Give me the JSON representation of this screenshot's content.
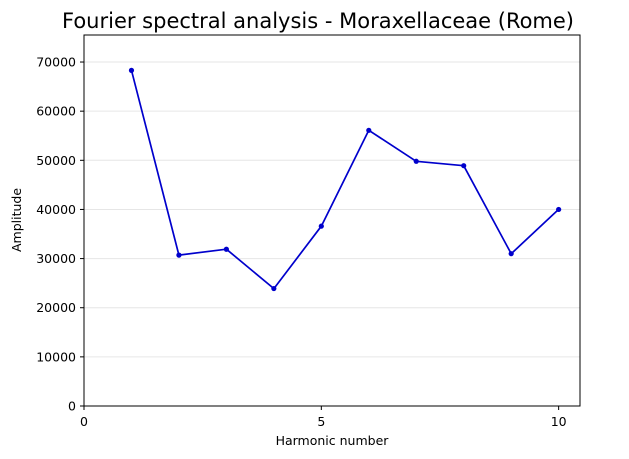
{
  "chart_data": {
    "type": "line",
    "title": "Fourier spectral analysis - Moraxellaceae (Rome)",
    "xlabel": "Harmonic number",
    "ylabel": "Amplitude",
    "xlim": [
      0,
      10.45
    ],
    "ylim": [
      0,
      75500
    ],
    "xticks": [
      0,
      5,
      10
    ],
    "yticks": [
      0,
      10000,
      20000,
      30000,
      40000,
      50000,
      60000,
      70000
    ],
    "grid": {
      "y": true,
      "x": false
    },
    "color": "#0000cc",
    "series": [
      {
        "x": [
          1,
          2,
          3,
          4,
          5,
          6,
          7,
          8,
          9,
          10
        ],
        "values": [
          68300,
          30700,
          31900,
          23900,
          36600,
          56100,
          49800,
          48900,
          31000,
          40000
        ]
      }
    ]
  }
}
